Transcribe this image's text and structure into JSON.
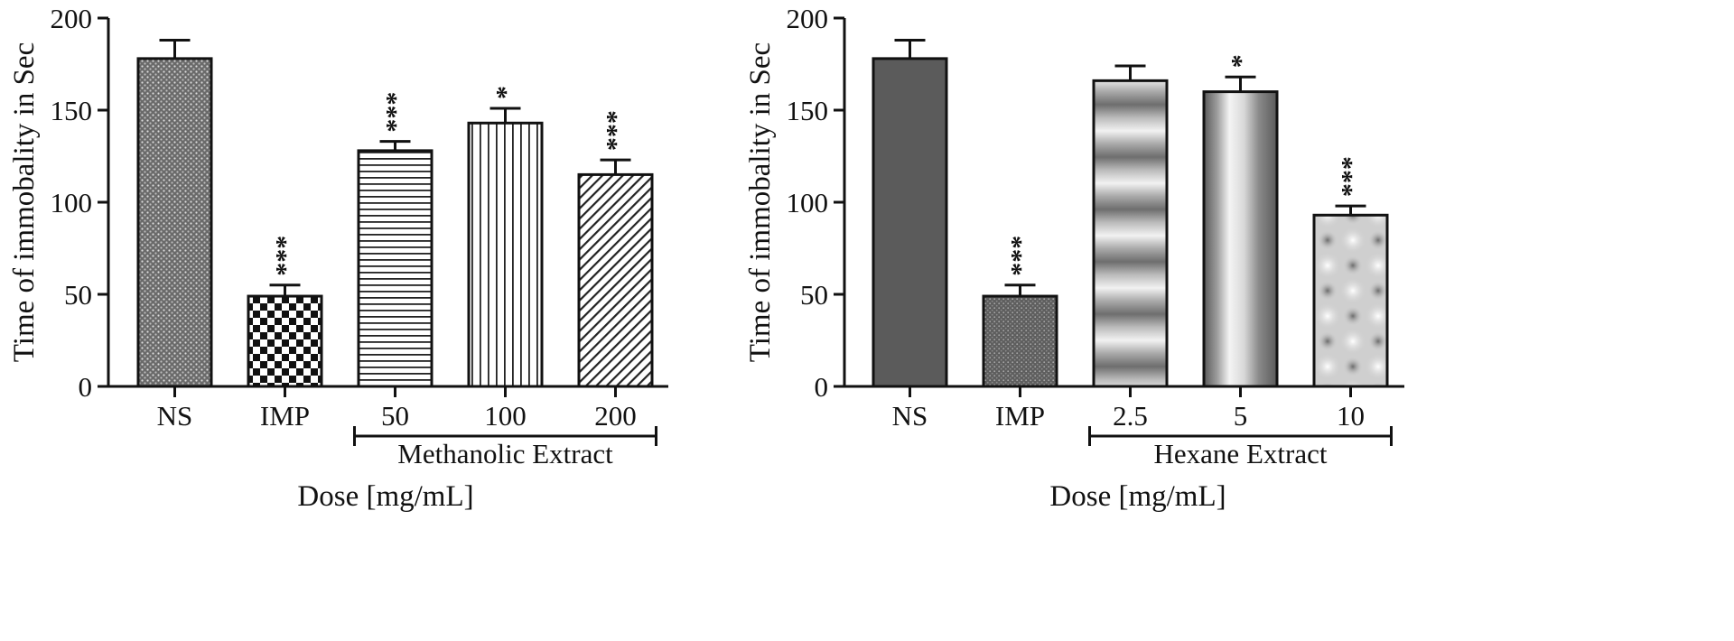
{
  "chart_data": [
    {
      "type": "bar",
      "ylabel": "Time of immobality in Sec",
      "xlabel": "Dose [mg/mL]",
      "ylim": [
        0,
        200
      ],
      "yticks": [
        0,
        50,
        100,
        150,
        200
      ],
      "categories": [
        "NS",
        "IMP",
        "50",
        "100",
        "200"
      ],
      "values": [
        178,
        49,
        128,
        143,
        115
      ],
      "errors": [
        10,
        6,
        5,
        8,
        8
      ],
      "significance": [
        "",
        "***",
        "***",
        "*",
        "***"
      ],
      "group_bracket": {
        "label": "Methanolic Extract",
        "from": "50",
        "to": "200"
      },
      "grid": false,
      "patterns": [
        "dense-dots",
        "checkerboard",
        "horizontal-lines",
        "vertical-lines",
        "diagonal-lines"
      ]
    },
    {
      "type": "bar",
      "ylabel": "Time of immobality in Sec",
      "xlabel": "Dose [mg/mL]",
      "ylim": [
        0,
        200
      ],
      "yticks": [
        0,
        50,
        100,
        150,
        200
      ],
      "categories": [
        "NS",
        "IMP",
        "2.5",
        "5",
        "10"
      ],
      "values": [
        178,
        49,
        166,
        160,
        93
      ],
      "errors": [
        10,
        6,
        8,
        8,
        5
      ],
      "significance": [
        "",
        "***",
        "",
        "*",
        "***"
      ],
      "group_bracket": {
        "label": "Hexane Extract",
        "from": "2.5",
        "to": "10"
      },
      "grid": false,
      "patterns": [
        "solid-gray",
        "fine-dots",
        "horizontal-gradient-bands",
        "vertical-gradient",
        "blurred-dots"
      ]
    }
  ],
  "colors": {
    "bar_dark": "#555555",
    "bar_outline": "#111111",
    "background": "#ffffff"
  }
}
